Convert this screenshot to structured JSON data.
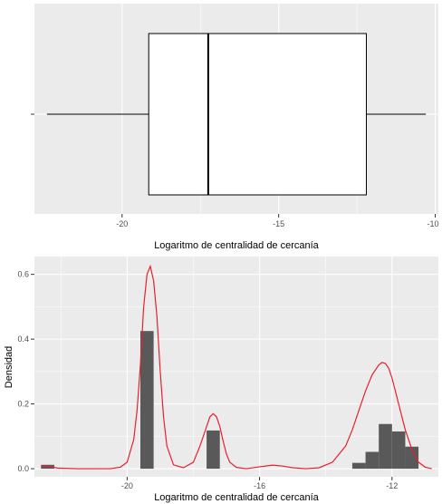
{
  "chart_data": [
    {
      "type": "boxplot",
      "xlabel": "Logaritmo de centralidad de cercanía",
      "ylabel": "",
      "xlim": [
        -22.8,
        -9.9
      ],
      "x_ticks": [
        -20,
        -15,
        -10
      ],
      "x_tick_labels": [
        "-20",
        "-15",
        "-10"
      ],
      "y_tick_labels": [
        ""
      ],
      "box": {
        "whisker_low": -22.4,
        "q1": -19.15,
        "median": -17.25,
        "q3": -12.2,
        "whisker_high": -10.3
      },
      "grid": true,
      "colors": {
        "panel": "#ebebeb",
        "grid": "#ffffff",
        "box_fill": "#ffffff",
        "box_line": "#000000"
      }
    },
    {
      "type": "histogram",
      "xlabel": "Logaritmo de centralidad de cercanía",
      "ylabel": "Densidad",
      "xlim": [
        -22.8,
        -10.6
      ],
      "ylim": [
        -0.025,
        0.655
      ],
      "x_ticks": [
        -20,
        -16,
        -12
      ],
      "x_tick_labels": [
        "-20",
        "-16",
        "-12"
      ],
      "y_ticks": [
        0.0,
        0.2,
        0.4,
        0.6
      ],
      "y_tick_labels": [
        "0.0",
        "0.2",
        "0.4",
        "0.6"
      ],
      "bins": [
        {
          "x0": -22.6,
          "x1": -22.2,
          "density": 0.012
        },
        {
          "x0": -19.6,
          "x1": -19.2,
          "density": 0.425
        },
        {
          "x0": -17.6,
          "x1": -17.2,
          "density": 0.118
        },
        {
          "x0": -13.2,
          "x1": -12.8,
          "density": 0.018
        },
        {
          "x0": -12.8,
          "x1": -12.4,
          "density": 0.052
        },
        {
          "x0": -12.4,
          "x1": -12.0,
          "density": 0.138
        },
        {
          "x0": -12.0,
          "x1": -11.6,
          "density": 0.115
        },
        {
          "x0": -11.6,
          "x1": -11.2,
          "density": 0.068
        }
      ],
      "density_curve": {
        "color": "#e8202c",
        "x": [
          -22.6,
          -22.5,
          -22.3,
          -22.1,
          -21.5,
          -20.5,
          -20.2,
          -20.0,
          -19.8,
          -19.7,
          -19.6,
          -19.5,
          -19.4,
          -19.3,
          -19.2,
          -19.1,
          -19.0,
          -18.9,
          -18.8,
          -18.6,
          -18.3,
          -18.0,
          -17.8,
          -17.6,
          -17.5,
          -17.4,
          -17.3,
          -17.2,
          -17.1,
          -17.0,
          -16.9,
          -16.7,
          -16.4,
          -16.0,
          -15.6,
          -15.3,
          -15.0,
          -14.6,
          -14.2,
          -13.8,
          -13.4,
          -13.2,
          -13.0,
          -12.8,
          -12.6,
          -12.4,
          -12.3,
          -12.2,
          -12.1,
          -12.0,
          -11.8,
          -11.6,
          -11.4,
          -11.2,
          -11.0,
          -10.8
        ],
        "y": [
          0.007,
          0.009,
          0.006,
          0.002,
          0.0,
          0.0,
          0.005,
          0.02,
          0.09,
          0.18,
          0.32,
          0.5,
          0.6,
          0.625,
          0.58,
          0.47,
          0.3,
          0.16,
          0.07,
          0.012,
          0.003,
          0.02,
          0.07,
          0.13,
          0.16,
          0.17,
          0.16,
          0.13,
          0.085,
          0.045,
          0.02,
          0.004,
          0.0,
          0.006,
          0.011,
          0.008,
          0.003,
          0.0,
          0.003,
          0.02,
          0.07,
          0.12,
          0.18,
          0.24,
          0.29,
          0.32,
          0.328,
          0.325,
          0.31,
          0.28,
          0.2,
          0.12,
          0.06,
          0.02,
          0.005,
          0.0
        ]
      },
      "grid": true,
      "colors": {
        "panel": "#ebebeb",
        "grid": "#ffffff",
        "bar": "#595959"
      }
    }
  ]
}
